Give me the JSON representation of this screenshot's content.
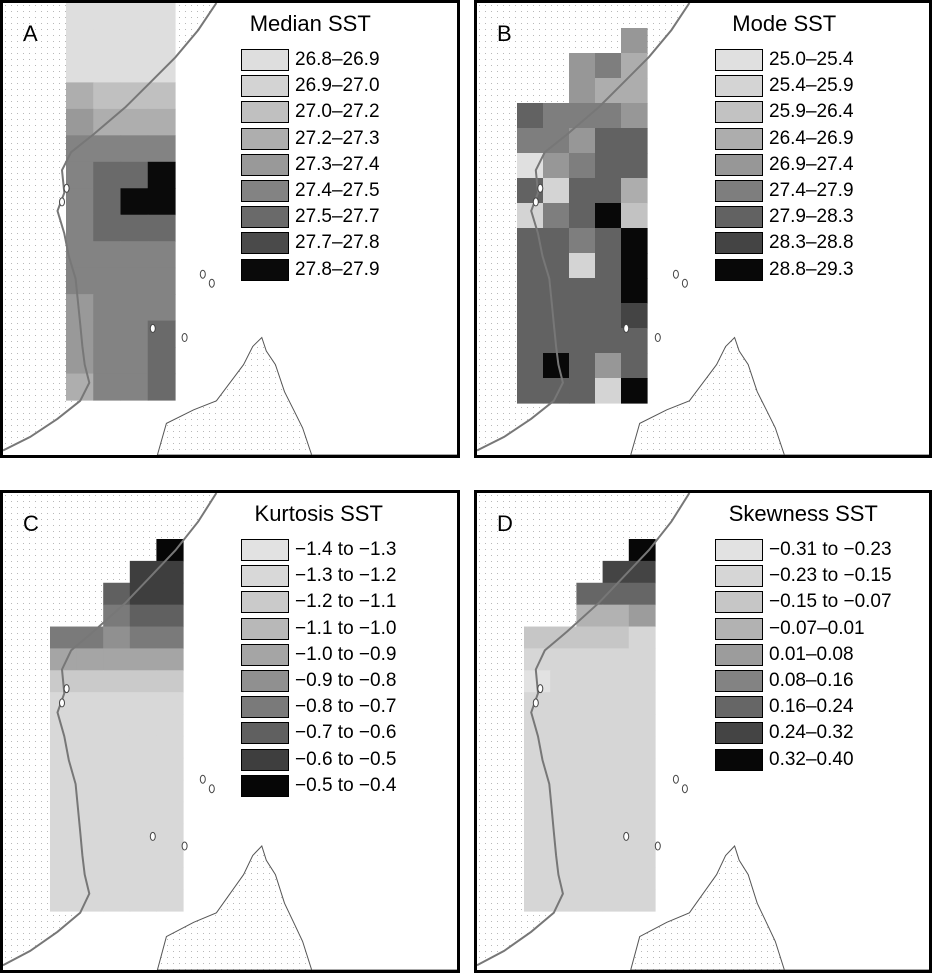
{
  "panels": [
    {
      "letter": "A",
      "legend": {
        "title": "Median SST",
        "items": [
          {
            "label": "26.8–26.9",
            "color": "#dedede"
          },
          {
            "label": "26.9–27.0",
            "color": "#d3d3d3"
          },
          {
            "label": "27.0–27.2",
            "color": "#c0c0c0"
          },
          {
            "label": "27.2–27.3",
            "color": "#aeaeae"
          },
          {
            "label": "27.3–27.4",
            "color": "#999999"
          },
          {
            "label": "27.4–27.5",
            "color": "#838383"
          },
          {
            "label": "27.5–27.7",
            "color": "#6a6a6a"
          },
          {
            "label": "27.7–27.8",
            "color": "#4a4a4a"
          },
          {
            "label": "27.8–27.9",
            "color": "#0a0a0a"
          }
        ]
      },
      "grid": [
        [
          0,
          0,
          0,
          0
        ],
        [
          0,
          0,
          0,
          0
        ],
        [
          0,
          0,
          0,
          0
        ],
        [
          3,
          2,
          2,
          2
        ],
        [
          4,
          3,
          3,
          3
        ],
        [
          5,
          5,
          5,
          5
        ],
        [
          5,
          6,
          6,
          8
        ],
        [
          5,
          6,
          8,
          8
        ],
        [
          5,
          6,
          6,
          6
        ],
        [
          5,
          5,
          5,
          5
        ],
        [
          5,
          5,
          5,
          5
        ],
        [
          4,
          5,
          5,
          5
        ],
        [
          4,
          5,
          5,
          6
        ],
        [
          4,
          5,
          5,
          6
        ],
        [
          3,
          5,
          5,
          6
        ]
      ]
    },
    {
      "letter": "B",
      "legend": {
        "title": "Mode SST",
        "items": [
          {
            "label": "25.0–25.4",
            "color": "#e0e0e0"
          },
          {
            "label": "25.4–25.9",
            "color": "#d4d4d4"
          },
          {
            "label": "25.9–26.4",
            "color": "#c2c2c2"
          },
          {
            "label": "26.4–26.9",
            "color": "#adadad"
          },
          {
            "label": "26.9–27.4",
            "color": "#979797"
          },
          {
            "label": "27.4–27.9",
            "color": "#7e7e7e"
          },
          {
            "label": "27.9–28.3",
            "color": "#626262"
          },
          {
            "label": "28.3–28.8",
            "color": "#444444"
          },
          {
            "label": "28.8–29.3",
            "color": "#080808"
          }
        ]
      },
      "grid": [
        [
          -1,
          -1,
          -1,
          -1,
          -1
        ],
        [
          -1,
          -1,
          -1,
          -1,
          4
        ],
        [
          -1,
          -1,
          4,
          5,
          3
        ],
        [
          -1,
          -1,
          4,
          3,
          3
        ],
        [
          6,
          5,
          5,
          5,
          4
        ],
        [
          5,
          5,
          4,
          6,
          6
        ],
        [
          0,
          4,
          5,
          6,
          6
        ],
        [
          6,
          1,
          6,
          6,
          3
        ],
        [
          1,
          5,
          6,
          8,
          2
        ],
        [
          6,
          6,
          5,
          6,
          8
        ],
        [
          6,
          6,
          1,
          6,
          8
        ],
        [
          6,
          6,
          6,
          6,
          8
        ],
        [
          6,
          6,
          6,
          6,
          7
        ],
        [
          6,
          6,
          6,
          6,
          6
        ],
        [
          6,
          8,
          6,
          4,
          6
        ],
        [
          6,
          6,
          6,
          1,
          8
        ]
      ]
    },
    {
      "letter": "C",
      "legend": {
        "title": "Kurtosis SST",
        "items": [
          {
            "label": "−1.4 to −1.3",
            "color": "#e2e2e2"
          },
          {
            "label": "−1.3 to −1.2",
            "color": "#d8d8d8"
          },
          {
            "label": "−1.2 to −1.1",
            "color": "#cacaca"
          },
          {
            "label": "−1.1 to −1.0",
            "color": "#b8b8b8"
          },
          {
            "label": "−1.0 to −0.9",
            "color": "#a5a5a5"
          },
          {
            "label": "−0.9 to −0.8",
            "color": "#909090"
          },
          {
            "label": "−0.8 to −0.7",
            "color": "#7a7a7a"
          },
          {
            "label": "−0.7 to −0.6",
            "color": "#606060"
          },
          {
            "label": "−0.6 to −0.5",
            "color": "#3e3e3e"
          },
          {
            "label": "−0.5 to −0.4",
            "color": "#060606"
          }
        ]
      },
      "grid": [
        [
          -1,
          -1,
          -1,
          -1,
          9
        ],
        [
          -1,
          -1,
          -1,
          8,
          8
        ],
        [
          -1,
          -1,
          7,
          8,
          8
        ],
        [
          -1,
          -1,
          6,
          7,
          7
        ],
        [
          6,
          6,
          5,
          6,
          6
        ],
        [
          4,
          4,
          4,
          4,
          4
        ],
        [
          2,
          2,
          2,
          2,
          2
        ],
        [
          1,
          1,
          1,
          1,
          1
        ],
        [
          1,
          1,
          1,
          1,
          1
        ],
        [
          1,
          1,
          1,
          1,
          1
        ],
        [
          1,
          1,
          1,
          1,
          1
        ],
        [
          1,
          1,
          1,
          1,
          1
        ],
        [
          1,
          1,
          1,
          1,
          1
        ],
        [
          1,
          1,
          1,
          1,
          1
        ],
        [
          1,
          1,
          1,
          1,
          1
        ],
        [
          1,
          1,
          1,
          1,
          1
        ],
        [
          1,
          1,
          1,
          1,
          1
        ]
      ]
    },
    {
      "letter": "D",
      "legend": {
        "title": "Skewness SST",
        "items": [
          {
            "label": "−0.31 to −0.23",
            "color": "#e2e2e2"
          },
          {
            "label": "−0.23 to −0.15",
            "color": "#d6d6d6"
          },
          {
            "label": "−0.15 to −0.07",
            "color": "#c6c6c6"
          },
          {
            "label": "−0.07–0.01",
            "color": "#b2b2b2"
          },
          {
            "label": "0.01–0.08",
            "color": "#9c9c9c"
          },
          {
            "label": "0.08–0.16",
            "color": "#838383"
          },
          {
            "label": "0.16–0.24",
            "color": "#666666"
          },
          {
            "label": "0.24–0.32",
            "color": "#444444"
          },
          {
            "label": "0.32–0.40",
            "color": "#070707"
          }
        ]
      },
      "grid": [
        [
          -1,
          -1,
          -1,
          -1,
          8
        ],
        [
          -1,
          -1,
          -1,
          7,
          7
        ],
        [
          -1,
          -1,
          6,
          6,
          6
        ],
        [
          -1,
          -1,
          3,
          3,
          4
        ],
        [
          2,
          2,
          2,
          2,
          1
        ],
        [
          1,
          1,
          1,
          1,
          1
        ],
        [
          0,
          1,
          1,
          1,
          1
        ],
        [
          1,
          1,
          1,
          1,
          1
        ],
        [
          1,
          1,
          1,
          1,
          1
        ],
        [
          1,
          1,
          1,
          1,
          1
        ],
        [
          1,
          1,
          1,
          1,
          1
        ],
        [
          1,
          1,
          1,
          1,
          1
        ],
        [
          1,
          1,
          1,
          1,
          1
        ],
        [
          1,
          1,
          1,
          1,
          1
        ],
        [
          1,
          1,
          1,
          1,
          1
        ],
        [
          1,
          1,
          1,
          1,
          1
        ],
        [
          1,
          1,
          1,
          1,
          1
        ]
      ]
    }
  ]
}
